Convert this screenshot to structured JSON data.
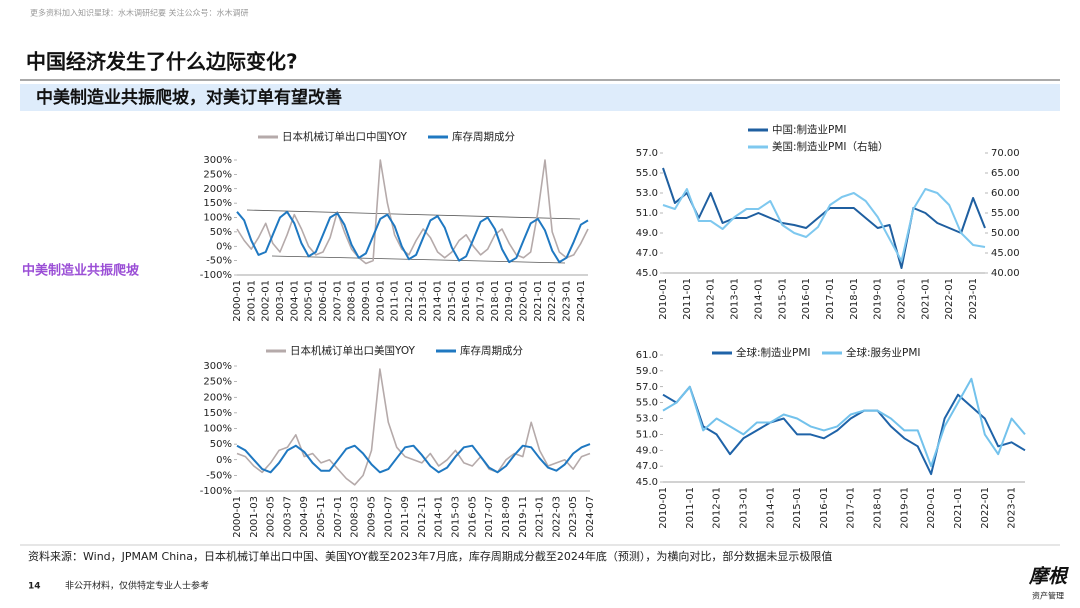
{
  "header": {
    "note": "更多资料加入知识星球：水木调研纪要  关注公众号：水木调研",
    "title": "中国经济发生了什么边际变化?",
    "subtitle": "中美制造业共振爬坡，对美订单有望改善",
    "side_label": "中美制造业共振爬坡"
  },
  "footer": {
    "source": "资料来源：Wind，JPMAM China，日本机械订单出口中国、美国YOY截至2023年7月底，库存周期成分截至2024年底（预测），为横向对比，部分数据未显示极限值",
    "page": "14",
    "disclaimer": "非公开材料，仅供特定专业人士参考",
    "logo": "摩根",
    "logo_sub": "资产管理"
  },
  "chart_data": [
    {
      "type": "line",
      "categories": [
        "2000-01",
        null,
        "2001-01",
        null,
        "2002-01",
        null,
        "2003-01",
        null,
        "2004-01",
        null,
        "2005-01",
        null,
        "2006-01",
        null,
        "2007-01",
        null,
        "2008-01",
        null,
        "2009-01",
        null,
        "2010-01",
        null,
        "2011-01",
        null,
        "2012-01",
        null,
        "2013-01",
        null,
        "2014-01",
        null,
        "2015-01",
        null,
        "2016-01",
        null,
        "2017-01",
        null,
        "2018-01",
        null,
        "2019-01",
        null,
        "2020-01",
        null,
        "2021-01",
        null,
        "2022-01",
        null,
        "2023-01",
        null,
        "2024-01",
        null
      ],
      "series": [
        {
          "name": "日本机械订单出口中国YOY",
          "color": "#b5aaaa",
          "values": [
            60,
            20,
            -10,
            30,
            80,
            10,
            -20,
            40,
            110,
            60,
            0,
            -30,
            -20,
            30,
            120,
            50,
            -10,
            -40,
            -60,
            -50,
            300,
            150,
            40,
            -10,
            -30,
            20,
            60,
            30,
            -20,
            -40,
            -20,
            20,
            40,
            0,
            -30,
            -10,
            40,
            60,
            10,
            -30,
            -40,
            -20,
            120,
            300,
            50,
            -20,
            -40,
            -30,
            10,
            60
          ]
        },
        {
          "name": "库存周期成分",
          "color": "#1f78c1",
          "values": [
            120,
            90,
            20,
            -30,
            -20,
            40,
            100,
            120,
            80,
            10,
            -35,
            -20,
            40,
            100,
            115,
            75,
            5,
            -40,
            -25,
            35,
            95,
            110,
            70,
            0,
            -45,
            -30,
            30,
            90,
            105,
            65,
            -5,
            -50,
            -35,
            25,
            85,
            100,
            60,
            -10,
            -55,
            -40,
            20,
            80,
            95,
            55,
            -15,
            -55,
            -40,
            15,
            75,
            90
          ]
        }
      ],
      "ylim": [
        -100,
        300
      ],
      "yticks": [
        {
          "value": -100,
          "label": "-100%"
        },
        {
          "value": -50,
          "label": "-50%"
        },
        {
          "value": 0,
          "label": "0%"
        },
        {
          "value": 50,
          "label": "50%"
        },
        {
          "value": 100,
          "label": "100%"
        },
        {
          "value": 150,
          "label": "150%"
        },
        {
          "value": 200,
          "label": "200%"
        },
        {
          "value": 250,
          "label": "250%"
        },
        {
          "value": 300,
          "label": "300%"
        }
      ]
    },
    {
      "type": "line",
      "categories": [
        "2010-01",
        null,
        "2011-01",
        null,
        "2012-01",
        null,
        "2013-01",
        null,
        "2014-01",
        null,
        "2015-01",
        null,
        "2016-01",
        null,
        "2017-01",
        null,
        "2018-01",
        null,
        "2019-01",
        null,
        "2020-01",
        null,
        "2021-01",
        null,
        "2022-01",
        null,
        "2023-01",
        null
      ],
      "series": [
        {
          "name": "中国:制造业PMI",
          "color": "#1f5fa0",
          "values": [
            55.5,
            52,
            53,
            50.5,
            53,
            50,
            50.5,
            50.5,
            51,
            50.5,
            50,
            49.8,
            49.5,
            50.5,
            51.5,
            51.5,
            51.5,
            50.5,
            49.5,
            49.8,
            45.5,
            51.5,
            51,
            50,
            49.5,
            49,
            52.5,
            49.5
          ]
        },
        {
          "name": "美国:制造业PMI（右轴）",
          "color": "#7ec8ef",
          "axis": "y2",
          "values": [
            57,
            56,
            61,
            53,
            53,
            51,
            54,
            56,
            56,
            58,
            52,
            50,
            49,
            51.5,
            57,
            59,
            60,
            58,
            54,
            48.5,
            43,
            56,
            61,
            60,
            57,
            50,
            47,
            46.5
          ]
        }
      ],
      "ylim": [
        45,
        57
      ],
      "yticks": [
        {
          "value": 45,
          "label": "45.0"
        },
        {
          "value": 47,
          "label": "47.0"
        },
        {
          "value": 49,
          "label": "49.0"
        },
        {
          "value": 51,
          "label": "51.0"
        },
        {
          "value": 53,
          "label": "53.0"
        },
        {
          "value": 55,
          "label": "55.0"
        },
        {
          "value": 57,
          "label": "57.0"
        }
      ],
      "y2lim": [
        40,
        70
      ],
      "y2ticks": [
        {
          "value": 40,
          "label": "40.00"
        },
        {
          "value": 45,
          "label": "45.00"
        },
        {
          "value": 50,
          "label": "50.00"
        },
        {
          "value": 55,
          "label": "55.00"
        },
        {
          "value": 60,
          "label": "60.00"
        },
        {
          "value": 65,
          "label": "65.00"
        },
        {
          "value": 70,
          "label": "70.00"
        }
      ]
    },
    {
      "type": "line",
      "categories": [
        "2000-01",
        null,
        "2001-03",
        null,
        "2002-05",
        null,
        "2003-07",
        null,
        "2004-09",
        null,
        "2005-11",
        null,
        "2007-01",
        null,
        "2008-03",
        null,
        "2009-05",
        null,
        "2010-07",
        null,
        "2011-09",
        null,
        "2012-11",
        null,
        "2014-01",
        null,
        "2015-03",
        null,
        "2016-05",
        null,
        "2017-07",
        null,
        "2018-09",
        null,
        "2019-11",
        null,
        "2021-01",
        null,
        "2022-03",
        null,
        "2023-05",
        null,
        "2024-07"
      ],
      "series": [
        {
          "name": "日本机械订单出口美国YOY",
          "color": "#b5aaaa",
          "values": [
            20,
            10,
            -20,
            -40,
            -10,
            30,
            40,
            80,
            10,
            20,
            -10,
            0,
            -30,
            -60,
            -80,
            -50,
            30,
            290,
            120,
            40,
            10,
            0,
            -10,
            20,
            -20,
            0,
            30,
            -10,
            -20,
            10,
            -30,
            -40,
            0,
            20,
            10,
            120,
            30,
            -20,
            -10,
            0,
            -30,
            10,
            20
          ]
        },
        {
          "name": "库存周期成分",
          "color": "#1f78c1",
          "values": [
            45,
            30,
            0,
            -30,
            -40,
            -10,
            30,
            45,
            25,
            -10,
            -35,
            -35,
            0,
            35,
            45,
            20,
            -15,
            -40,
            -30,
            5,
            40,
            45,
            15,
            -20,
            -40,
            -25,
            10,
            40,
            45,
            10,
            -25,
            -40,
            -20,
            15,
            45,
            40,
            5,
            -25,
            -35,
            -15,
            20,
            40,
            50
          ]
        }
      ],
      "ylim": [
        -100,
        300
      ],
      "yticks": [
        {
          "value": -100,
          "label": "-100%"
        },
        {
          "value": -50,
          "label": "-50%"
        },
        {
          "value": 0,
          "label": "0%"
        },
        {
          "value": 50,
          "label": "50%"
        },
        {
          "value": 100,
          "label": "100%"
        },
        {
          "value": 150,
          "label": "150%"
        },
        {
          "value": 200,
          "label": "200%"
        },
        {
          "value": 250,
          "label": "250%"
        },
        {
          "value": 300,
          "label": "300%"
        }
      ]
    },
    {
      "type": "line",
      "categories": [
        "2010-01",
        null,
        "2011-01",
        null,
        "2012-01",
        null,
        "2013-01",
        null,
        "2014-01",
        null,
        "2015-01",
        null,
        "2016-01",
        null,
        "2017-01",
        null,
        "2018-01",
        null,
        "2019-01",
        null,
        "2020-01",
        null,
        "2021-01",
        null,
        "2022-01",
        null,
        "2023-01",
        null
      ],
      "series": [
        {
          "name": "全球:制造业PMI",
          "color": "#1f63a8",
          "values": [
            56,
            55,
            57,
            52,
            51,
            48.5,
            50.5,
            51.5,
            52.5,
            53,
            51,
            51,
            50.5,
            51.5,
            53,
            54,
            54,
            52,
            50.5,
            49.5,
            46,
            53,
            56,
            54.5,
            53,
            49.5,
            50,
            49
          ]
        },
        {
          "name": "全球:服务业PMI",
          "color": "#73c2ec",
          "values": [
            54,
            55,
            57,
            51.5,
            53,
            52,
            51,
            52.5,
            52.5,
            53.5,
            53,
            52,
            51.5,
            52,
            53.5,
            54,
            54,
            53,
            51.5,
            51.5,
            47,
            52,
            55,
            58,
            51,
            48.5,
            53,
            51
          ]
        }
      ],
      "ylim": [
        45,
        61
      ],
      "yticks": [
        {
          "value": 45,
          "label": "45.0"
        },
        {
          "value": 47,
          "label": "47.0"
        },
        {
          "value": 49,
          "label": "49.0"
        },
        {
          "value": 51,
          "label": "51.0"
        },
        {
          "value": 53,
          "label": "53.0"
        },
        {
          "value": 55,
          "label": "55.0"
        },
        {
          "value": 57,
          "label": "57.0"
        },
        {
          "value": 59,
          "label": "59.0"
        },
        {
          "value": 61,
          "label": "61.0"
        }
      ]
    }
  ]
}
